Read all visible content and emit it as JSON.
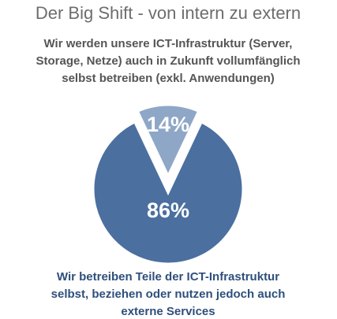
{
  "chart_data": {
    "type": "pie",
    "title": "Der Big Shift - von intern zu extern",
    "annotations": [
      [
        "Wir werden unsere ICT-Infrastruktur (Server,",
        "Storage, Netze) auch in Zukunft vollumfänglich",
        "selbst betreiben (exkl. Anwendungen)"
      ],
      [
        "Wir betreiben Teile der ICT-Infrastruktur",
        "selbst, beziehen oder nutzen jedoch auch",
        "externe Services"
      ]
    ],
    "values": [
      14,
      86
    ],
    "value_labels": [
      "14%",
      "86%"
    ],
    "colors": [
      "#8ea7c7",
      "#4b6f9f"
    ]
  }
}
